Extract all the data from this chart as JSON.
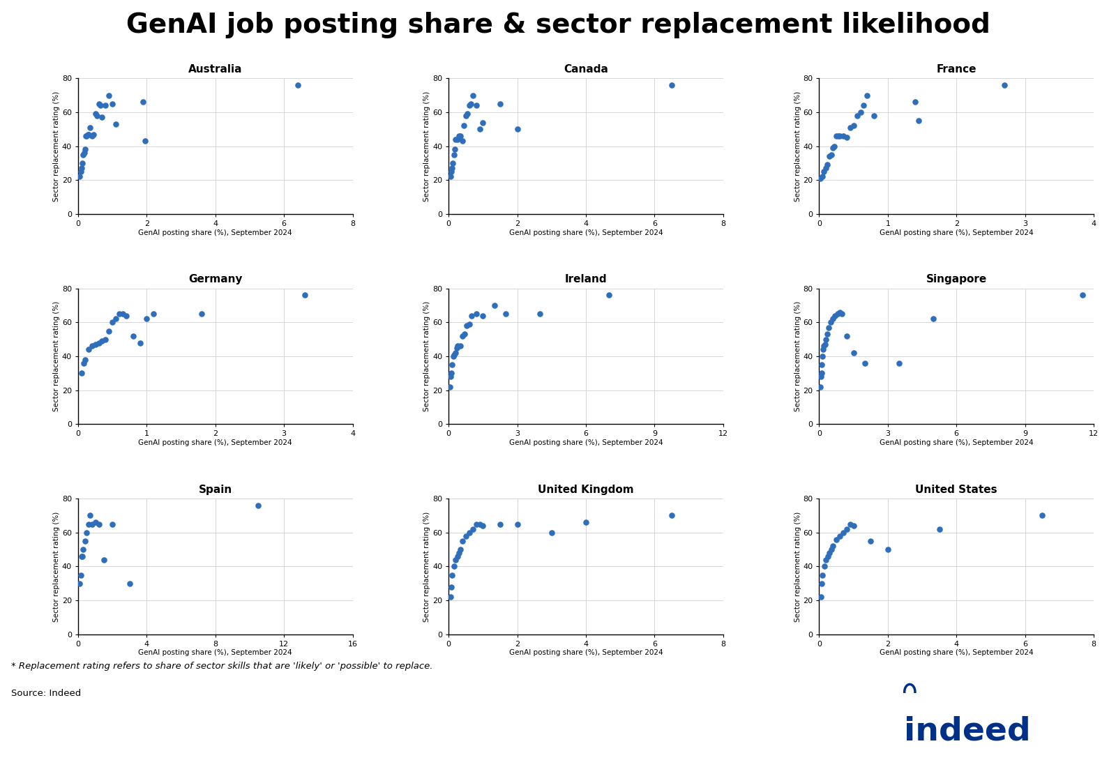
{
  "title": "GenAI job posting share & sector replacement likelihood",
  "footnote": "* Replacement rating refers to share of sector skills that are 'likely' or 'possible' to replace.",
  "source": "Source: Indeed",
  "dot_color": "#2f6eba",
  "countries": [
    {
      "name": "Australia",
      "xlim": [
        0,
        8
      ],
      "xticks": [
        0,
        2,
        4,
        6,
        8
      ],
      "x": [
        0.05,
        0.08,
        0.1,
        0.12,
        0.15,
        0.18,
        0.2,
        0.22,
        0.25,
        0.28,
        0.3,
        0.35,
        0.4,
        0.45,
        0.5,
        0.55,
        0.6,
        0.65,
        0.7,
        0.8,
        0.9,
        1.0,
        1.1,
        1.9,
        1.95,
        6.4
      ],
      "y": [
        22,
        25,
        27,
        30,
        35,
        36,
        38,
        46,
        46,
        47,
        47,
        51,
        46,
        47,
        59,
        58,
        65,
        64,
        57,
        64,
        70,
        65,
        53,
        66,
        43,
        76
      ]
    },
    {
      "name": "Canada",
      "xlim": [
        0,
        8
      ],
      "xticks": [
        0,
        2,
        4,
        6,
        8
      ],
      "x": [
        0.05,
        0.08,
        0.1,
        0.12,
        0.15,
        0.18,
        0.2,
        0.25,
        0.3,
        0.35,
        0.4,
        0.45,
        0.5,
        0.55,
        0.6,
        0.65,
        0.7,
        0.8,
        0.9,
        1.0,
        1.5,
        2.0,
        6.5
      ],
      "y": [
        22,
        25,
        27,
        30,
        35,
        38,
        44,
        44,
        46,
        46,
        43,
        52,
        58,
        59,
        64,
        65,
        70,
        64,
        50,
        54,
        65,
        50,
        76
      ]
    },
    {
      "name": "France",
      "xlim": [
        0,
        4
      ],
      "xticks": [
        0,
        1,
        2,
        3,
        4
      ],
      "x": [
        0.02,
        0.05,
        0.07,
        0.1,
        0.12,
        0.15,
        0.18,
        0.2,
        0.22,
        0.25,
        0.28,
        0.3,
        0.35,
        0.4,
        0.45,
        0.5,
        0.55,
        0.6,
        0.65,
        0.7,
        0.8,
        1.4,
        1.45,
        2.7
      ],
      "y": [
        21,
        22,
        25,
        27,
        29,
        34,
        35,
        39,
        40,
        46,
        46,
        46,
        46,
        45,
        51,
        52,
        58,
        60,
        64,
        70,
        58,
        66,
        55,
        76
      ]
    },
    {
      "name": "Germany",
      "xlim": [
        0,
        4
      ],
      "xticks": [
        0,
        1,
        2,
        3,
        4
      ],
      "x": [
        0.05,
        0.08,
        0.1,
        0.15,
        0.2,
        0.25,
        0.3,
        0.35,
        0.4,
        0.45,
        0.5,
        0.55,
        0.6,
        0.65,
        0.7,
        0.8,
        0.9,
        1.0,
        1.1,
        1.8,
        3.3
      ],
      "y": [
        30,
        36,
        38,
        44,
        46,
        47,
        48,
        49,
        50,
        55,
        60,
        62,
        65,
        65,
        64,
        52,
        48,
        62,
        65,
        65,
        76
      ]
    },
    {
      "name": "Ireland",
      "xlim": [
        0,
        12
      ],
      "xticks": [
        0,
        3,
        6,
        9,
        12
      ],
      "x": [
        0.05,
        0.08,
        0.1,
        0.15,
        0.2,
        0.25,
        0.3,
        0.35,
        0.4,
        0.5,
        0.6,
        0.7,
        0.8,
        0.9,
        1.0,
        1.2,
        1.5,
        2.0,
        2.5,
        4.0,
        7.0
      ],
      "y": [
        22,
        28,
        30,
        35,
        40,
        41,
        42,
        45,
        46,
        46,
        52,
        53,
        58,
        59,
        64,
        65,
        64,
        70,
        65,
        65,
        76
      ]
    },
    {
      "name": "Singapore",
      "xlim": [
        0,
        12
      ],
      "xticks": [
        0,
        3,
        6,
        9,
        12
      ],
      "x": [
        0.05,
        0.08,
        0.1,
        0.12,
        0.15,
        0.18,
        0.2,
        0.25,
        0.3,
        0.35,
        0.4,
        0.5,
        0.6,
        0.7,
        0.8,
        0.9,
        1.0,
        1.2,
        1.5,
        2.0,
        3.5,
        5.0,
        11.5
      ],
      "y": [
        22,
        28,
        30,
        35,
        40,
        44,
        46,
        47,
        50,
        53,
        57,
        60,
        62,
        64,
        65,
        66,
        65,
        52,
        42,
        36,
        36,
        62,
        76
      ]
    },
    {
      "name": "Spain",
      "xlim": [
        0,
        16
      ],
      "xticks": [
        0,
        4,
        8,
        12,
        16
      ],
      "x": [
        0.1,
        0.15,
        0.2,
        0.25,
        0.3,
        0.4,
        0.5,
        0.6,
        0.7,
        0.8,
        1.0,
        1.2,
        1.5,
        2.0,
        3.0,
        10.5
      ],
      "y": [
        30,
        35,
        46,
        46,
        50,
        55,
        60,
        65,
        70,
        65,
        66,
        65,
        44,
        65,
        30,
        76
      ]
    },
    {
      "name": "United Kingdom",
      "xlim": [
        0,
        8
      ],
      "xticks": [
        0,
        2,
        4,
        6,
        8
      ],
      "x": [
        0.05,
        0.08,
        0.1,
        0.15,
        0.2,
        0.25,
        0.3,
        0.35,
        0.4,
        0.5,
        0.6,
        0.7,
        0.8,
        0.9,
        1.0,
        1.5,
        2.0,
        3.0,
        4.0,
        6.5
      ],
      "y": [
        22,
        28,
        35,
        40,
        44,
        46,
        48,
        50,
        55,
        58,
        60,
        62,
        65,
        65,
        64,
        65,
        65,
        60,
        66,
        70
      ]
    },
    {
      "name": "United States",
      "xlim": [
        0,
        8
      ],
      "xticks": [
        0,
        2,
        4,
        6,
        8
      ],
      "x": [
        0.05,
        0.08,
        0.1,
        0.15,
        0.2,
        0.25,
        0.3,
        0.35,
        0.4,
        0.5,
        0.6,
        0.7,
        0.8,
        0.9,
        1.0,
        1.5,
        2.0,
        3.5,
        6.5
      ],
      "y": [
        22,
        30,
        35,
        40,
        44,
        46,
        48,
        50,
        52,
        56,
        58,
        60,
        62,
        65,
        64,
        55,
        50,
        62,
        70
      ]
    }
  ]
}
